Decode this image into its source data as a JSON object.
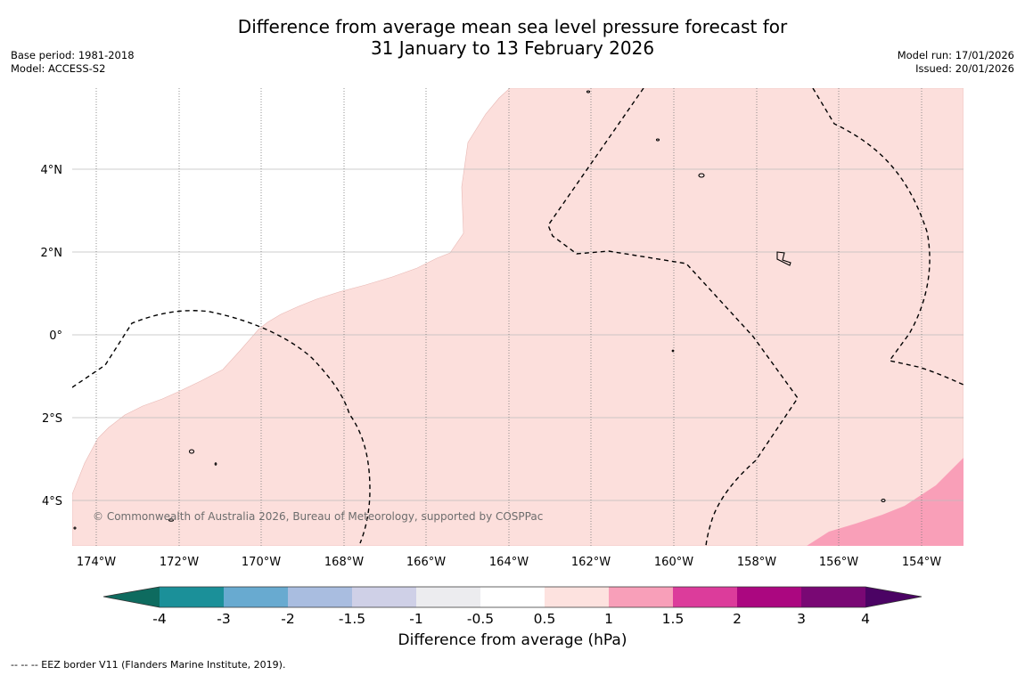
{
  "header": {
    "title_line1": "Difference from average mean sea level pressure forecast for",
    "title_line2": "31 January to 13 February 2026",
    "base_period": "Base period: 1981-2018",
    "model": "Model: ACCESS-S2",
    "model_run": "Model run: 17/01/2026",
    "issued": "Issued: 20/01/2026"
  },
  "map": {
    "lat_labels": [
      "4°N",
      "2°N",
      "0°",
      "2°S",
      "4°S"
    ],
    "lon_labels": [
      "174°W",
      "172°W",
      "170°W",
      "168°W",
      "166°W",
      "164°W",
      "162°W",
      "160°W",
      "158°W",
      "156°W",
      "154°W"
    ],
    "credit": "© Commonwealth of Australia 2026, Bureau of Meteorology, supported by COSPPac",
    "colors": {
      "band_0_5_to_1": "#fcdfdc",
      "band_1_to_1_5": "#f99fb8"
    }
  },
  "colorbar": {
    "ticks": [
      "-4",
      "-3",
      "-2",
      "-1.5",
      "-1",
      "-0.5",
      "0.5",
      "1",
      "1.5",
      "2",
      "3",
      "4"
    ],
    "colors": [
      "#0e6b5f",
      "#1b9099",
      "#68aad0",
      "#a9bde0",
      "#cfd0e7",
      "#ececef",
      "#ffffff",
      "#fde2df",
      "#f89fb9",
      "#dc3c9b",
      "#ab0780",
      "#790874",
      "#4b0364"
    ],
    "label": "Difference from average (hPa)"
  },
  "footnote": "--  --  -- EEZ border V11 (Flanders Marine Institute, 2019)."
}
